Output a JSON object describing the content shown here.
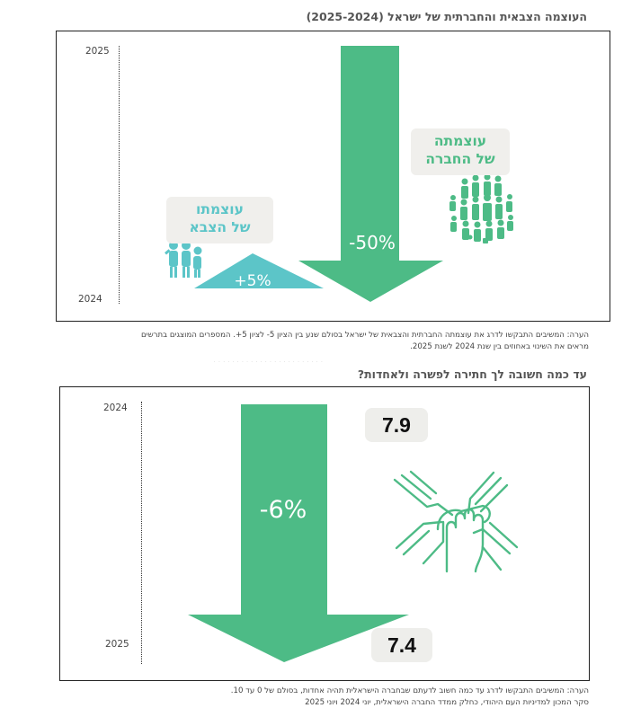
{
  "colors": {
    "green": "#4dbb86",
    "teal": "#5cc5c8",
    "bubble_bg": "#f0efec",
    "score_bg": "#eeeeeb"
  },
  "icons": [
    "soldiers-icon",
    "crowd-icon",
    "joined-hands-icon"
  ],
  "chart_data": [
    {
      "type": "arrow-change",
      "title": "העוצמה הצבאית והחברתית של ישראל (2025-2024)",
      "axis": {
        "top_label": "2025",
        "bottom_label": "2024"
      },
      "series": [
        {
          "name": "עוצמתו של הצבא",
          "name_lines": [
            "עוצמתו",
            "של הצבא"
          ],
          "direction": "up",
          "change_percent": 5,
          "label": "+5%",
          "color": "#5cc5c8"
        },
        {
          "name": "עוצמתה של החברה",
          "name_lines": [
            "עוצמתה",
            "של החברה"
          ],
          "direction": "down",
          "change_percent": -50,
          "label": "-50%",
          "color": "#4dbb86"
        }
      ],
      "note_lines": [
        "הערה: המשיבים התבקשו לדרג את עוצמתה החברתית והצבאית של ישראל בסולם שנע בין הציון 5- לציון 5+. המספרים המוצגים בתרשים",
        "מראים את השינוי באחוזים בין שנת 2024 לשנת 2025."
      ]
    },
    {
      "type": "arrow-change",
      "title": "עד כמה חשובה לך חתירה לפשרה ולאחדות?",
      "axis": {
        "top_label": "2024",
        "bottom_label": "2025"
      },
      "series": [
        {
          "direction": "down",
          "change_percent": -6,
          "label": "-6%",
          "start_value": 7.9,
          "end_value": 7.4,
          "start_label": "7.9",
          "end_label": "7.4",
          "color": "#4dbb86"
        }
      ],
      "note_lines": [
        "הערה: המשיבים התבקשו לדרג עד כמה חשוב לדעתם שבחברה הישראלית תהיה אחדות, בסולם של 0 עד 10.",
        "סקר המכון למדיניות העם היהודי, כחלק ממדד החברה הישראלית, יוני 2024 ויוני 2025"
      ]
    }
  ]
}
